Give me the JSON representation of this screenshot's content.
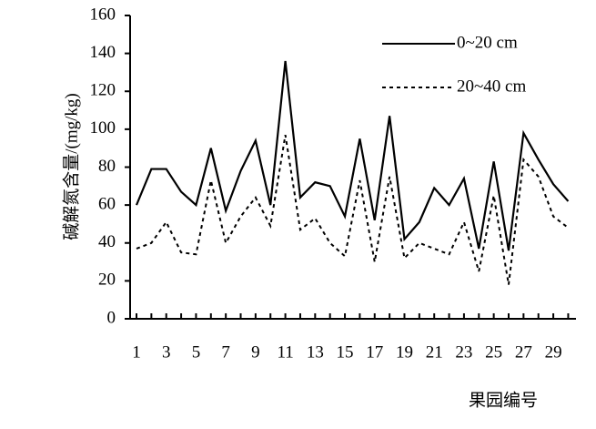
{
  "chart_data": {
    "type": "line",
    "y_label": "碱解氮含量/(mg/kg)",
    "x_label": "果园编号",
    "categories": [
      "1",
      null,
      "3",
      null,
      "5",
      null,
      "7",
      null,
      "9",
      null,
      "11",
      null,
      "13",
      null,
      "15",
      null,
      "17",
      null,
      "19",
      null,
      "21",
      null,
      "23",
      null,
      "25",
      null,
      "27",
      null,
      "29",
      null
    ],
    "ylim": [
      0,
      160
    ],
    "yticks": [
      0,
      20,
      40,
      60,
      80,
      100,
      120,
      140,
      160
    ],
    "legend": "top-right",
    "series": [
      {
        "name": "0~20 cm",
        "color": "#000000",
        "style": "solid",
        "values": [
          60,
          79,
          79,
          67,
          60,
          90,
          57,
          78,
          94,
          60,
          136,
          64,
          72,
          70,
          54,
          95,
          52,
          107,
          42,
          51,
          69,
          60,
          74,
          37,
          83,
          36,
          98,
          84,
          71,
          62
        ]
      },
      {
        "name": "20~40 cm",
        "color": "#000000",
        "style": "dashed",
        "values": [
          37,
          40,
          51,
          35,
          34,
          73,
          40,
          54,
          64,
          49,
          97,
          47,
          53,
          40,
          33,
          73,
          30,
          75,
          32,
          40,
          37,
          34,
          51,
          25,
          65,
          18,
          84,
          75,
          54,
          48
        ]
      }
    ]
  }
}
